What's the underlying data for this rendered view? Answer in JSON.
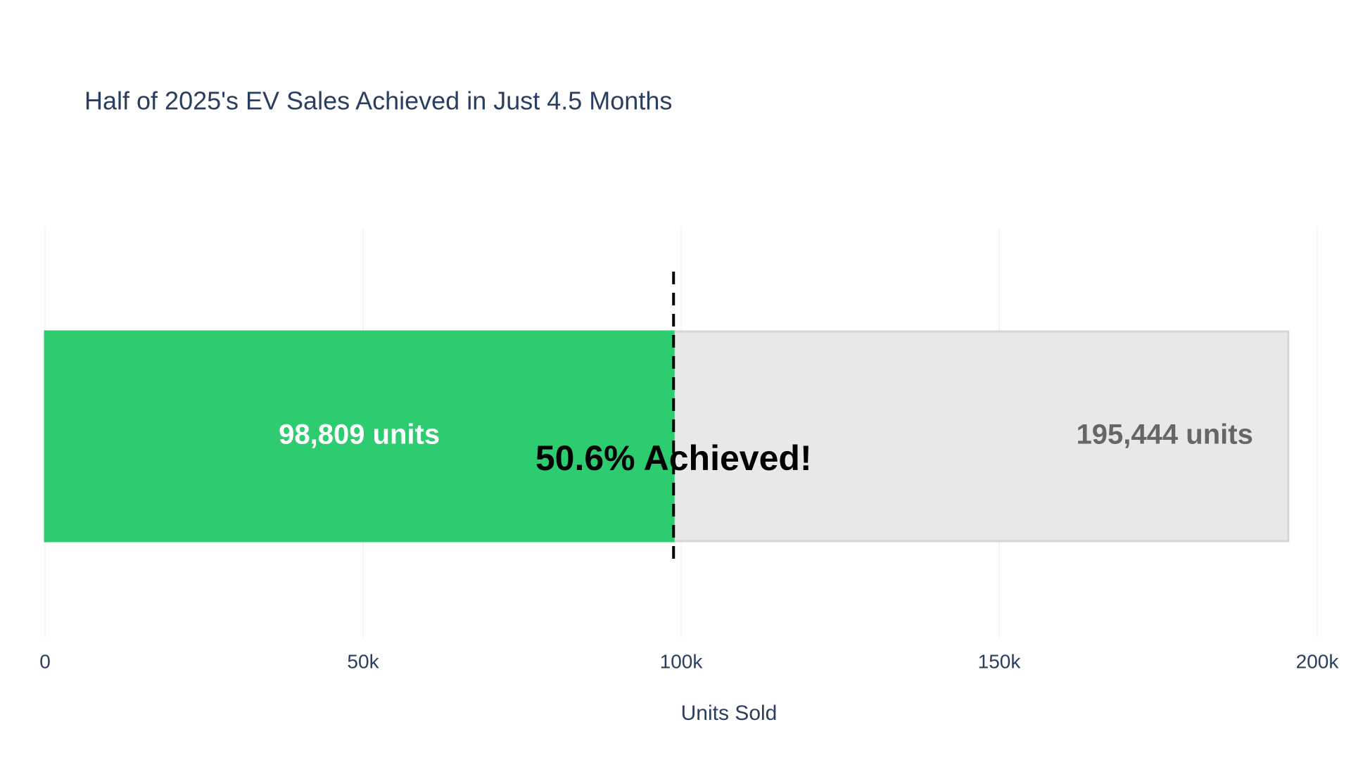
{
  "chart_data": {
    "type": "bar",
    "orientation": "horizontal",
    "title": "Half of 2025's EV Sales Achieved in Just 4.5 Months",
    "x_label": "Units Sold",
    "series": [
      {
        "color": "#e8e8e8",
        "values": [
          195444
        ],
        "value_labels": [
          "195,444 units"
        ],
        "label_color": "#666666"
      },
      {
        "color": "#2ecc71",
        "values": [
          98809
        ],
        "value_labels": [
          "98,809 units"
        ],
        "label_color": "#ffffff"
      }
    ],
    "reference_line": {
      "x": 98809,
      "color": "#000000",
      "dash": true
    },
    "annotation": {
      "text": "50.6% Achieved!",
      "x": 98809
    },
    "xlim": [
      0,
      200000
    ],
    "xticks": [
      {
        "value": 0,
        "label": "0"
      },
      {
        "value": 50000,
        "label": "50k"
      },
      {
        "value": 100000,
        "label": "100k"
      },
      {
        "value": 150000,
        "label": "150k"
      },
      {
        "value": 200000,
        "label": "200k"
      }
    ],
    "grid": true
  }
}
